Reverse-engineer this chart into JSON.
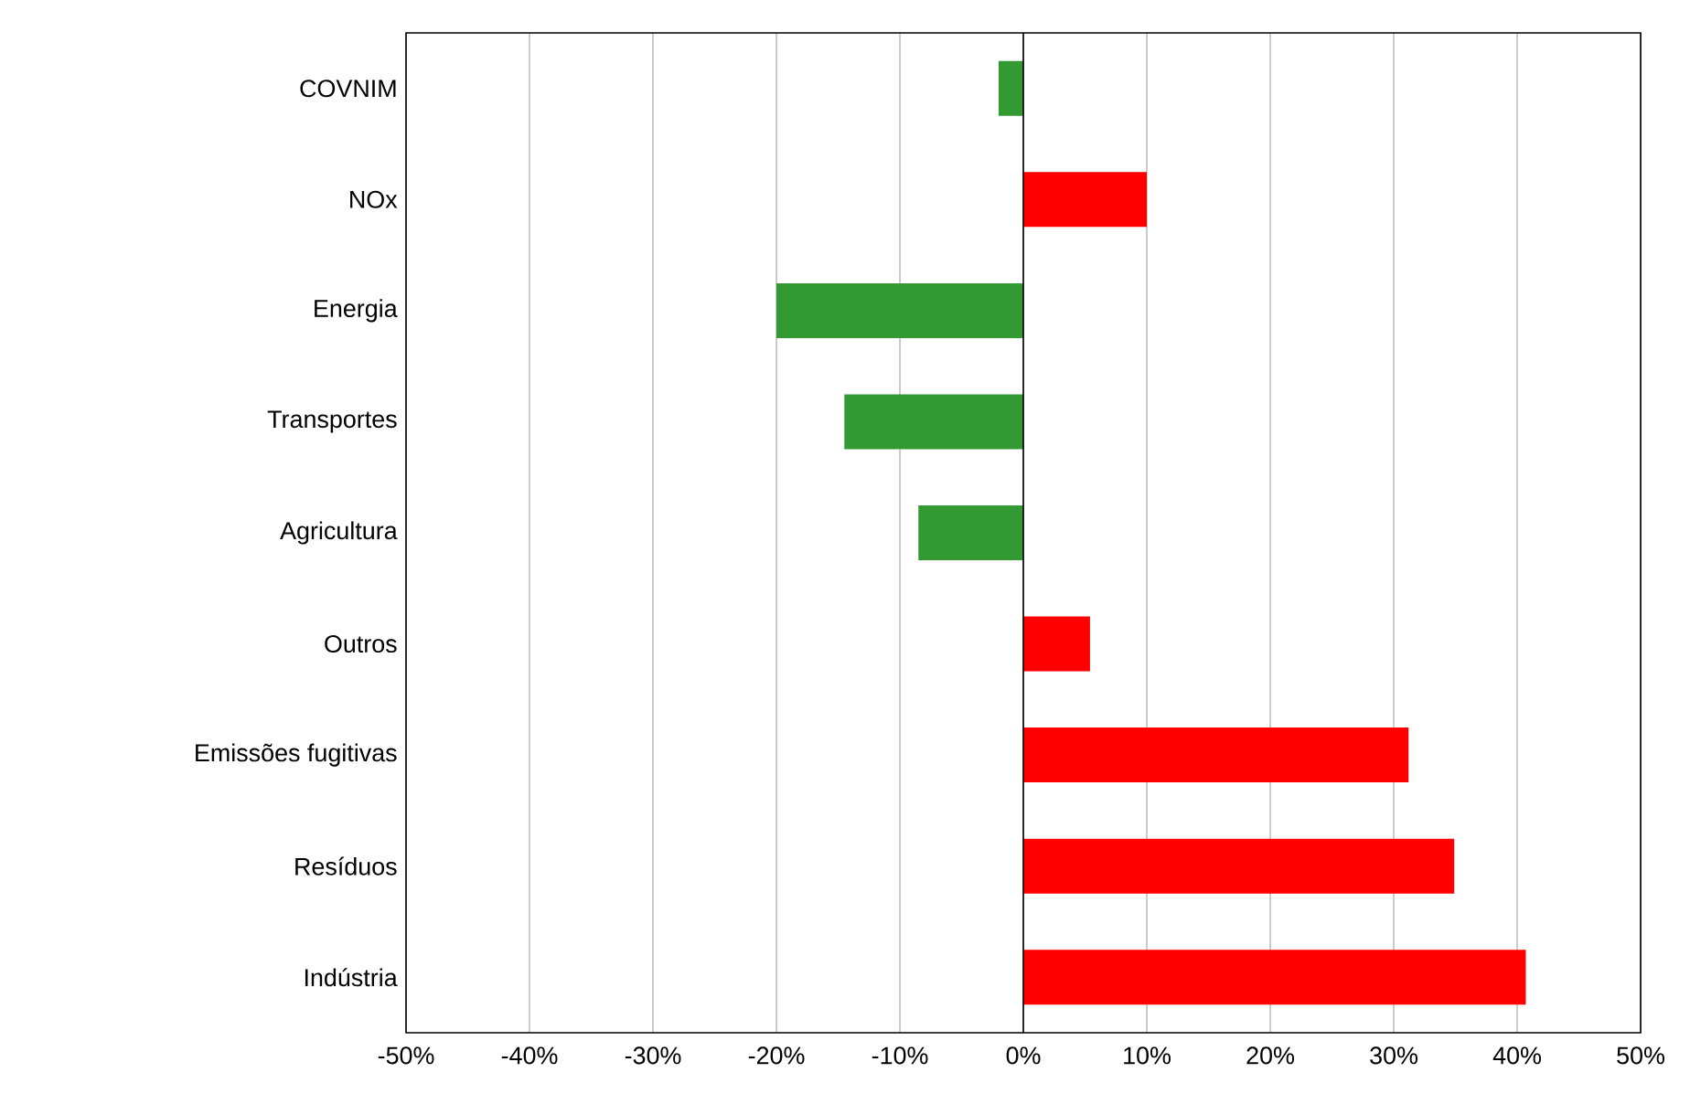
{
  "chart_data": {
    "type": "bar",
    "orientation": "horizontal",
    "categories": [
      "COVNIM",
      "NOx",
      "Energia",
      "Transportes",
      "Agricultura",
      "Outros",
      "Emissões fugitivas",
      "Resíduos",
      "Indústria"
    ],
    "values": [
      -2,
      10,
      -20,
      -14.5,
      -8.5,
      5.4,
      31.2,
      34.9,
      40.7
    ],
    "colors": [
      "#339933",
      "#ff0000",
      "#339933",
      "#339933",
      "#339933",
      "#ff0000",
      "#ff0000",
      "#ff0000",
      "#ff0000"
    ],
    "xlim": [
      -50,
      50
    ],
    "xticks": [
      {
        "value": -50,
        "label": "-50%"
      },
      {
        "value": -40,
        "label": "-40%"
      },
      {
        "value": -30,
        "label": "-30%"
      },
      {
        "value": -20,
        "label": "-20%"
      },
      {
        "value": -10,
        "label": "-10%"
      },
      {
        "value": 0,
        "label": "0%"
      },
      {
        "value": 10,
        "label": "10%"
      },
      {
        "value": 20,
        "label": "20%"
      },
      {
        "value": 30,
        "label": "30%"
      },
      {
        "value": 40,
        "label": "40%"
      },
      {
        "value": 50,
        "label": "50%"
      }
    ],
    "grid": "x"
  }
}
